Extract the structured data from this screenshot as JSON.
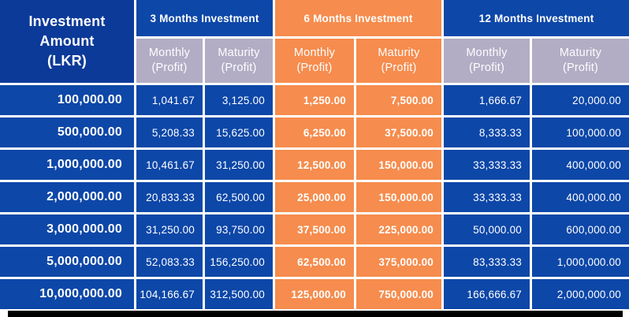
{
  "colors": {
    "corner_blue": "#0c3a99",
    "cell_blue": "#0d47a8",
    "orange": "#f68c4d",
    "lavender": "#b2adc4",
    "grid_line": "#ffffff",
    "text": "#ffffff",
    "bottom_bar": "#000000"
  },
  "header": {
    "corner_lines": [
      "Investment",
      "Amount",
      "(LKR)"
    ],
    "groups": [
      "3 Months Investment",
      "6 Months Investment",
      "12 Months Investment"
    ],
    "sub_monthly": "Monthly",
    "sub_maturity": "Maturity",
    "sub_suffix": "(Profit)"
  },
  "chart_data": {
    "type": "table",
    "columns": [
      "Investment Amount (LKR)",
      "3 Months Investment - Monthly (Profit)",
      "3 Months Investment - Maturity (Profit)",
      "6 Months Investment - Monthly (Profit)",
      "6 Months Investment - Maturity (Profit)",
      "12 Months Investment - Monthly (Profit)",
      "12 Months Investment - Maturity (Profit)"
    ],
    "rows": [
      [
        "100,000.00",
        "1,041.67",
        "3,125.00",
        "1,250.00",
        "7,500.00",
        "1,666.67",
        "20,000.00"
      ],
      [
        "500,000.00",
        "5,208.33",
        "15,625.00",
        "6,250.00",
        "37,500.00",
        "8,333.33",
        "100,000.00"
      ],
      [
        "1,000,000.00",
        "10,461.67",
        "31,250.00",
        "12,500.00",
        "150,000.00",
        "33,333.33",
        "400,000.00"
      ],
      [
        "2,000,000.00",
        "20,833.33",
        "62,500.00",
        "25,000.00",
        "150,000.00",
        "33,333.33",
        "400,000.00"
      ],
      [
        "3,000,000.00",
        "31,250.00",
        "93,750.00",
        "37,500.00",
        "225,000.00",
        "50,000.00",
        "600,000.00"
      ],
      [
        "5,000,000.00",
        "52,083.33",
        "156,250.00",
        "62,500.00",
        "375,000.00",
        "83,333.33",
        "1,000,000.00"
      ],
      [
        "10,000,000.00",
        "104,166.67",
        "312,500.00",
        "125,000.00",
        "750,000.00",
        "166,666.67",
        "2,000,000.00"
      ]
    ]
  }
}
